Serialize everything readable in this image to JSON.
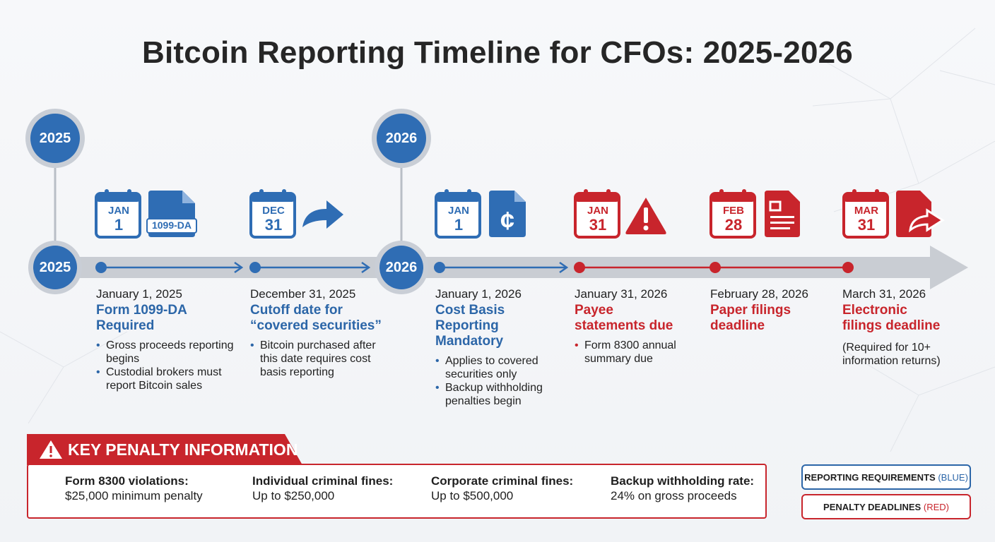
{
  "title": "Bitcoin Reporting Timeline for CFOs: 2025-2026",
  "colors": {
    "blue": "#2f6db4",
    "red": "#c8252c",
    "gray": "#c9ced6"
  },
  "year_markers": {
    "y2025_top": "2025",
    "y2025_mid": "2025",
    "y2026_top": "2026",
    "y2026_mid": "2026"
  },
  "events": [
    {
      "month": "JAN",
      "day": "1",
      "icon": "document-1099-icon",
      "icon_label": "1099-DA",
      "color": "blue",
      "date": "January 1, 2025",
      "title": "Form 1099-DA Required",
      "bullets": [
        "Gross proceeds reporting begins",
        "Custodial brokers must report Bitcoin sales"
      ]
    },
    {
      "month": "DEC",
      "day": "31",
      "icon": "arrow-forward-icon",
      "color": "blue",
      "date": "December 31, 2025",
      "title": "Cutoff date for “covered securities”",
      "bullets": [
        "Bitcoin purchased after this date requires cost basis reporting"
      ]
    },
    {
      "month": "JAN",
      "day": "1",
      "icon": "document-cent-icon",
      "color": "blue",
      "date": "January 1, 2026",
      "title": "Cost Basis Reporting Mandatory",
      "bullets": [
        "Applies to covered securities only",
        "Backup withholding penalties begin"
      ]
    },
    {
      "month": "JAN",
      "day": "31",
      "icon": "warning-icon",
      "color": "red",
      "date": "January 31, 2026",
      "title": "Payee statements due",
      "bullets": [
        "Form 8300 annual summary due"
      ]
    },
    {
      "month": "FEB",
      "day": "28",
      "icon": "paper-document-icon",
      "color": "red",
      "date": "February 28, 2026",
      "title": "Paper filings deadline",
      "bullets": []
    },
    {
      "month": "MAR",
      "day": "31",
      "icon": "electronic-send-icon",
      "color": "red",
      "date": "March 31, 2026",
      "title": "Electronic filings deadline",
      "note": "(Required for 10+ information returns)"
    }
  ],
  "penalty": {
    "header": "KEY PENALTY INFORMATION",
    "items": [
      {
        "label": "Form 8300 violations:",
        "value": "$25,000 minimum penalty"
      },
      {
        "label": "Individual criminal fines:",
        "value": "Up to $250,000"
      },
      {
        "label": "Corporate criminal fines:",
        "value": "Up to $500,000"
      },
      {
        "label": "Backup withholding rate:",
        "value": "24% on gross proceeds"
      }
    ]
  },
  "legend": {
    "blue_label": "REPORTING REQUIREMENTS",
    "blue_tag": "(BLUE)",
    "red_label": "PENALTY DEADLINES",
    "red_tag": "(RED)"
  }
}
